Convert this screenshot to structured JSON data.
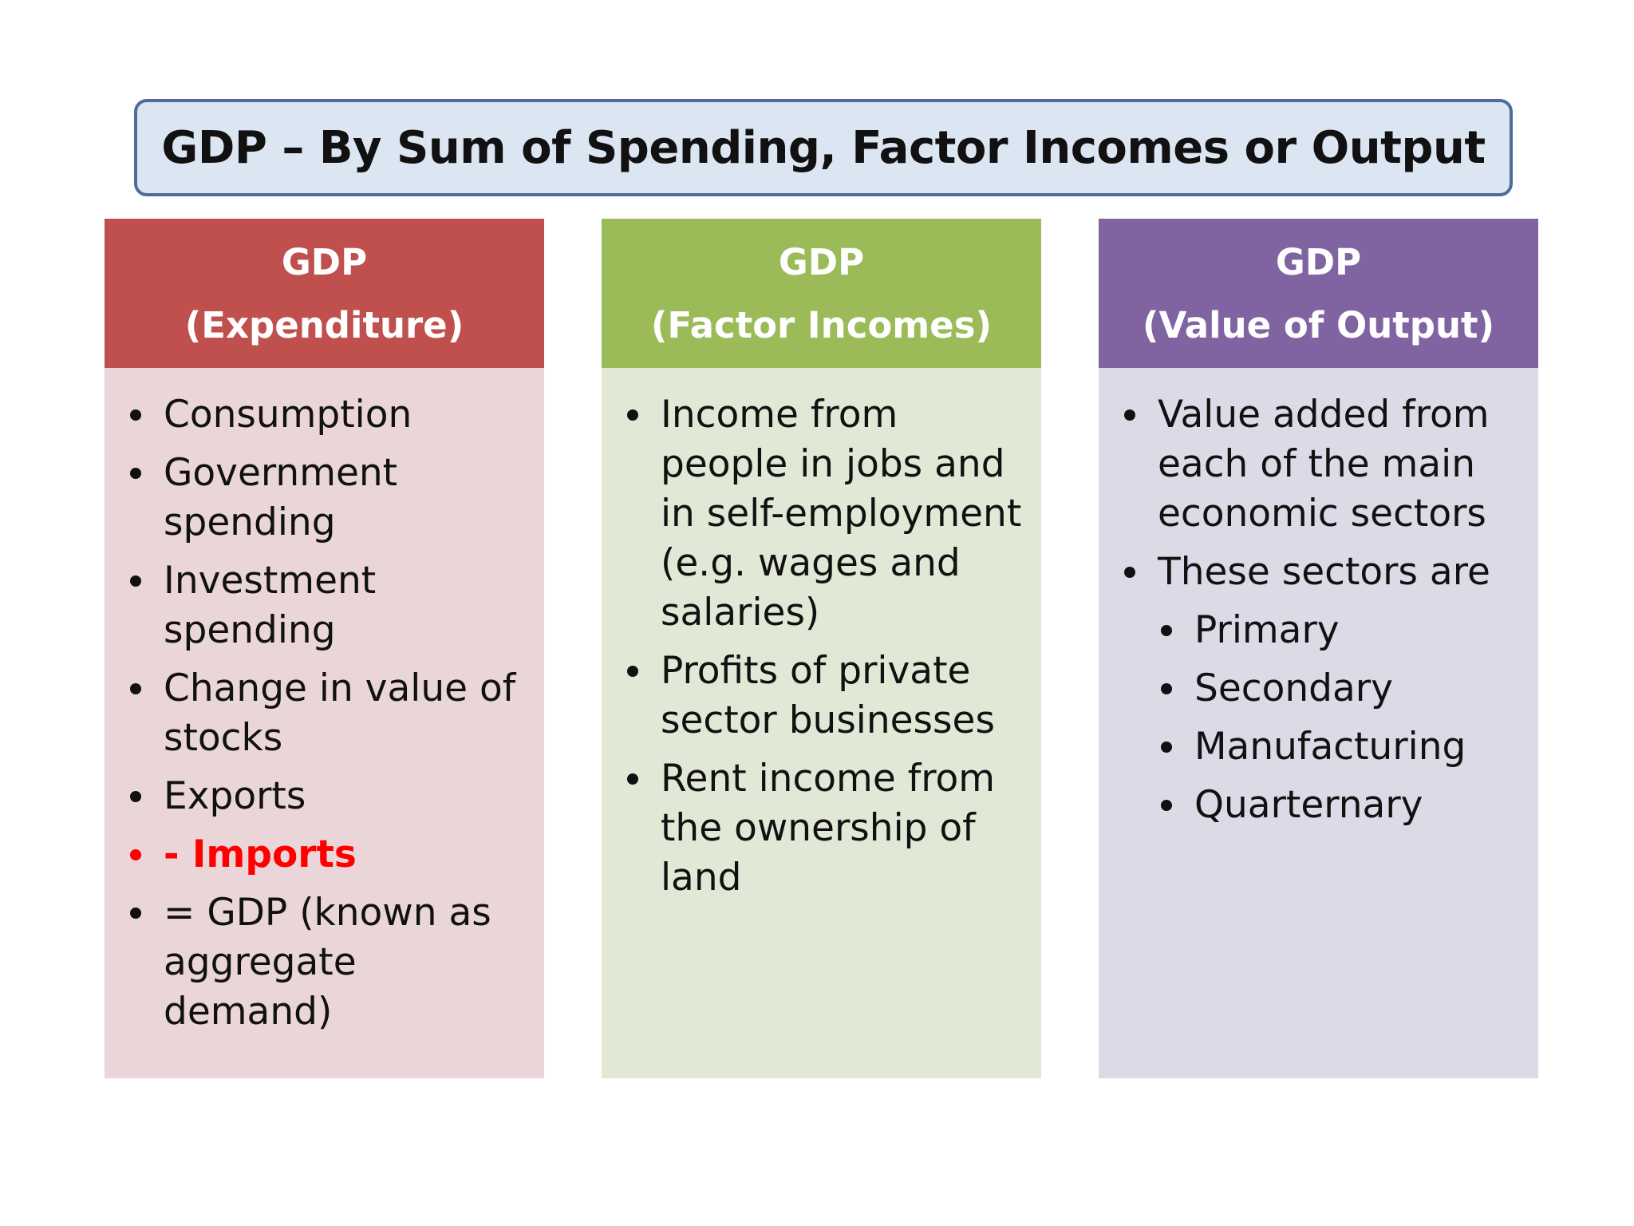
{
  "title": "GDP – By Sum of Spending, Factor Incomes or Output",
  "columns": [
    {
      "header_line1": "GDP",
      "header_line2": "(Expenditure)",
      "items": [
        "Consumption",
        "Government spending",
        "Investment spending",
        "Change in value of stocks",
        "Exports",
        "- Imports",
        "= GDP (known as aggregate demand)"
      ]
    },
    {
      "header_line1": "GDP",
      "header_line2": "(Factor Incomes)",
      "items": [
        "Income from people in jobs and in self-employment (e.g. wages and salaries)",
        "Profits of private sector businesses",
        "Rent income from the ownership of land"
      ]
    },
    {
      "header_line1": "GDP",
      "header_line2": "(Value of Output)",
      "items": [
        "Value added from each of the main economic sectors",
        "These sectors are"
      ],
      "sub_items": [
        "Primary",
        "Secondary",
        "Manufacturing",
        "Quarternary"
      ]
    }
  ],
  "colors": {
    "expenditure_header": "#c0504d",
    "expenditure_body": "#ead6d8",
    "factor_header": "#9bbb59",
    "factor_body": "#e2e8d6",
    "output_header": "#8064a2",
    "output_body": "#ded9e6",
    "title_fill": "#dce6f2",
    "title_border": "#4f6d9a",
    "imports_highlight": "#ff0000"
  }
}
